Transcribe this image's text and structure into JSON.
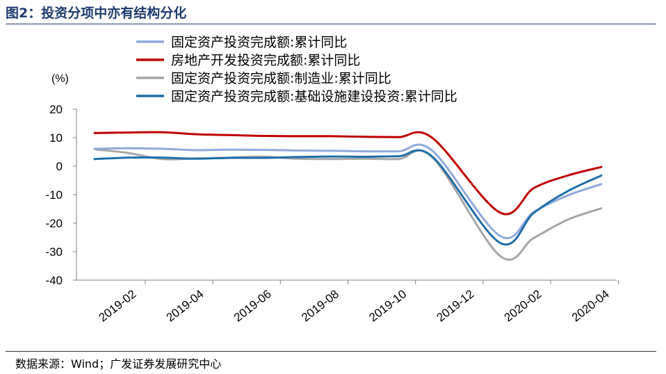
{
  "header": {
    "figure_label": "图2：",
    "title": "投资分项中亦有结构分化"
  },
  "source": {
    "text": "数据来源：Wind；广发证券发展研究中心"
  },
  "chart_data": {
    "type": "line",
    "unit_label": "(%)",
    "ylim": [
      -40,
      20
    ],
    "yticks": [
      20,
      10,
      0,
      -10,
      -20,
      -30,
      -40
    ],
    "xticks": [
      "2019-02",
      "2019-04",
      "2019-06",
      "2019-08",
      "2019-10",
      "2019-12",
      "2020-02",
      "2020-04"
    ],
    "grid": false,
    "legend_position": "top",
    "series": [
      {
        "name": "固定资产投资完成额:累计同比",
        "color": "#8faadc",
        "points": [
          [
            "2019-02",
            6.1
          ],
          [
            "2019-03",
            6.3
          ],
          [
            "2019-04",
            6.1
          ],
          [
            "2019-05",
            5.6
          ],
          [
            "2019-06",
            5.8
          ],
          [
            "2019-07",
            5.7
          ],
          [
            "2019-08",
            5.5
          ],
          [
            "2019-09",
            5.4
          ],
          [
            "2019-10",
            5.2
          ],
          [
            "2019-11",
            5.2
          ],
          [
            "2019-12",
            5.4
          ],
          [
            "2020-02",
            -24.5
          ],
          [
            "2020-03",
            -16.1
          ],
          [
            "2020-04",
            -10.3
          ],
          [
            "2020-05",
            -6.3
          ]
        ]
      },
      {
        "name": "房地产开发投资完成额:累计同比",
        "color": "#c00000",
        "points": [
          [
            "2019-02",
            11.6
          ],
          [
            "2019-03",
            11.8
          ],
          [
            "2019-04",
            11.9
          ],
          [
            "2019-05",
            11.2
          ],
          [
            "2019-06",
            10.9
          ],
          [
            "2019-07",
            10.6
          ],
          [
            "2019-08",
            10.5
          ],
          [
            "2019-09",
            10.5
          ],
          [
            "2019-10",
            10.3
          ],
          [
            "2019-11",
            10.2
          ],
          [
            "2019-12",
            9.9
          ],
          [
            "2020-02",
            -16.3
          ],
          [
            "2020-03",
            -7.7
          ],
          [
            "2020-04",
            -3.3
          ],
          [
            "2020-05",
            -0.3
          ]
        ]
      },
      {
        "name": "固定资产投资完成额:制造业:累计同比",
        "color": "#a6a6a6",
        "points": [
          [
            "2019-02",
            5.9
          ],
          [
            "2019-03",
            4.6
          ],
          [
            "2019-04",
            2.5
          ],
          [
            "2019-05",
            2.7
          ],
          [
            "2019-06",
            3.0
          ],
          [
            "2019-07",
            3.3
          ],
          [
            "2019-08",
            2.6
          ],
          [
            "2019-09",
            2.5
          ],
          [
            "2019-10",
            2.6
          ],
          [
            "2019-11",
            2.5
          ],
          [
            "2019-12",
            3.1
          ],
          [
            "2020-02",
            -31.5
          ],
          [
            "2020-03",
            -25.2
          ],
          [
            "2020-04",
            -18.8
          ],
          [
            "2020-05",
            -14.8
          ]
        ]
      },
      {
        "name": "固定资产投资完成额:基础设施建设投资:累计同比",
        "color": "#1f6fa8",
        "points": [
          [
            "2019-02",
            2.5
          ],
          [
            "2019-03",
            3.0
          ],
          [
            "2019-04",
            3.0
          ],
          [
            "2019-05",
            2.6
          ],
          [
            "2019-06",
            2.9
          ],
          [
            "2019-07",
            2.9
          ],
          [
            "2019-08",
            3.2
          ],
          [
            "2019-09",
            3.4
          ],
          [
            "2019-10",
            3.3
          ],
          [
            "2019-11",
            3.5
          ],
          [
            "2019-12",
            3.3
          ],
          [
            "2020-02",
            -26.9
          ],
          [
            "2020-03",
            -16.4
          ],
          [
            "2020-04",
            -8.8
          ],
          [
            "2020-05",
            -3.3
          ]
        ]
      }
    ]
  }
}
